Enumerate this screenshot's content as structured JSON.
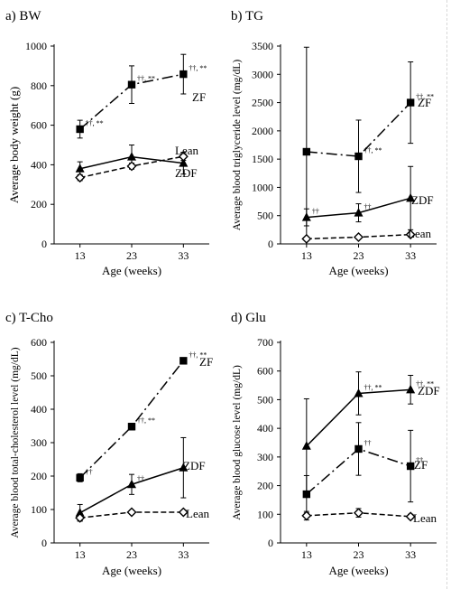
{
  "chart_data": [
    {
      "id": "bw",
      "type": "line",
      "title": "a)  BW",
      "xlabel": "Age (weeks)",
      "ylabel": "Average body weight (g)",
      "x": [
        13,
        23,
        33
      ],
      "xticks": [
        "13",
        "23",
        "33"
      ],
      "ylim": [
        0,
        1000
      ],
      "yticks": [
        0,
        200,
        400,
        600,
        800,
        1000
      ],
      "series": [
        {
          "name": "ZF",
          "style": "dashdot",
          "marker": "square",
          "values": [
            580,
            805,
            858
          ],
          "err": [
            45,
            95,
            100
          ],
          "annotations": [
            "††, **",
            "††, **",
            "††, **"
          ]
        },
        {
          "name": "ZDF",
          "style": "solid",
          "marker": "triangle",
          "values": [
            380,
            440,
            408
          ],
          "err": [
            35,
            60,
            55
          ],
          "annotations": [
            "",
            "",
            ""
          ]
        },
        {
          "name": "Lean",
          "style": "dashed",
          "marker": "diamond",
          "values": [
            335,
            393,
            442
          ],
          "err": [
            15,
            15,
            20
          ],
          "annotations": [
            "",
            "",
            ""
          ]
        }
      ]
    },
    {
      "id": "tg",
      "type": "line",
      "title": "b)  TG",
      "xlabel": "Age (weeks)",
      "ylabel": "Average blood triglyceride level (mg/dL)",
      "x": [
        13,
        23,
        33
      ],
      "xticks": [
        "13",
        "23",
        "33"
      ],
      "ylim": [
        0,
        3500
      ],
      "yticks": [
        0,
        500,
        1000,
        1500,
        2000,
        2500,
        3000,
        3500
      ],
      "series": [
        {
          "name": "ZF",
          "style": "dashdot",
          "marker": "square",
          "values": [
            1630,
            1550,
            2500
          ],
          "err": [
            1850,
            640,
            720
          ],
          "annotations": [
            "",
            "††, **",
            "††, **"
          ]
        },
        {
          "name": "ZDF",
          "style": "solid",
          "marker": "triangle",
          "values": [
            470,
            550,
            810
          ],
          "err": [
            150,
            160,
            560
          ],
          "annotations": [
            "††",
            "††",
            ""
          ]
        },
        {
          "name": "Lean",
          "style": "dashed",
          "marker": "diamond",
          "values": [
            90,
            120,
            165
          ],
          "err": [
            20,
            20,
            35
          ],
          "annotations": [
            "",
            "",
            ""
          ]
        }
      ]
    },
    {
      "id": "tcho",
      "type": "line",
      "title": "c)  T-Cho",
      "xlabel": "Age (weeks)",
      "ylabel": "Average blood total-cholesterol level (mg/dL)",
      "x": [
        13,
        23,
        33
      ],
      "xticks": [
        "13",
        "23",
        "33"
      ],
      "ylim": [
        0,
        600
      ],
      "yticks": [
        0,
        100,
        200,
        300,
        400,
        500,
        600
      ],
      "series": [
        {
          "name": "ZF",
          "style": "dashdot",
          "marker": "square",
          "values": [
            195,
            348,
            545
          ],
          "err": [
            12,
            10,
            8
          ],
          "annotations": [
            "††",
            "††, **",
            "††, **"
          ]
        },
        {
          "name": "ZDF",
          "style": "solid",
          "marker": "triangle",
          "values": [
            90,
            175,
            225
          ],
          "err": [
            25,
            30,
            90
          ],
          "annotations": [
            "",
            "††",
            ""
          ]
        },
        {
          "name": "Lean",
          "style": "dashed",
          "marker": "diamond",
          "values": [
            75,
            92,
            92
          ],
          "err": [
            8,
            6,
            5
          ],
          "annotations": [
            "",
            "",
            ""
          ]
        }
      ]
    },
    {
      "id": "glu",
      "type": "line",
      "title": "d)  Glu",
      "xlabel": "Age (weeks)",
      "ylabel": "Average blood glucose level (mg/dL)",
      "x": [
        13,
        23,
        33
      ],
      "xticks": [
        "13",
        "23",
        "33"
      ],
      "ylim": [
        0,
        700
      ],
      "yticks": [
        0,
        100,
        200,
        300,
        400,
        500,
        600,
        700
      ],
      "series": [
        {
          "name": "ZDF",
          "style": "solid",
          "marker": "triangle",
          "values": [
            338,
            522,
            535
          ],
          "err": [
            165,
            75,
            50
          ],
          "annotations": [
            "",
            "††, **",
            "††, **"
          ]
        },
        {
          "name": "ZF",
          "style": "dashdot",
          "marker": "square",
          "values": [
            170,
            328,
            268
          ],
          "err": [
            65,
            92,
            125
          ],
          "annotations": [
            "",
            "††",
            "††"
          ]
        },
        {
          "name": "Lean",
          "style": "dashed",
          "marker": "diamond",
          "values": [
            95,
            105,
            92
          ],
          "err": [
            15,
            15,
            8
          ],
          "annotations": [
            "",
            "",
            ""
          ]
        }
      ]
    }
  ]
}
